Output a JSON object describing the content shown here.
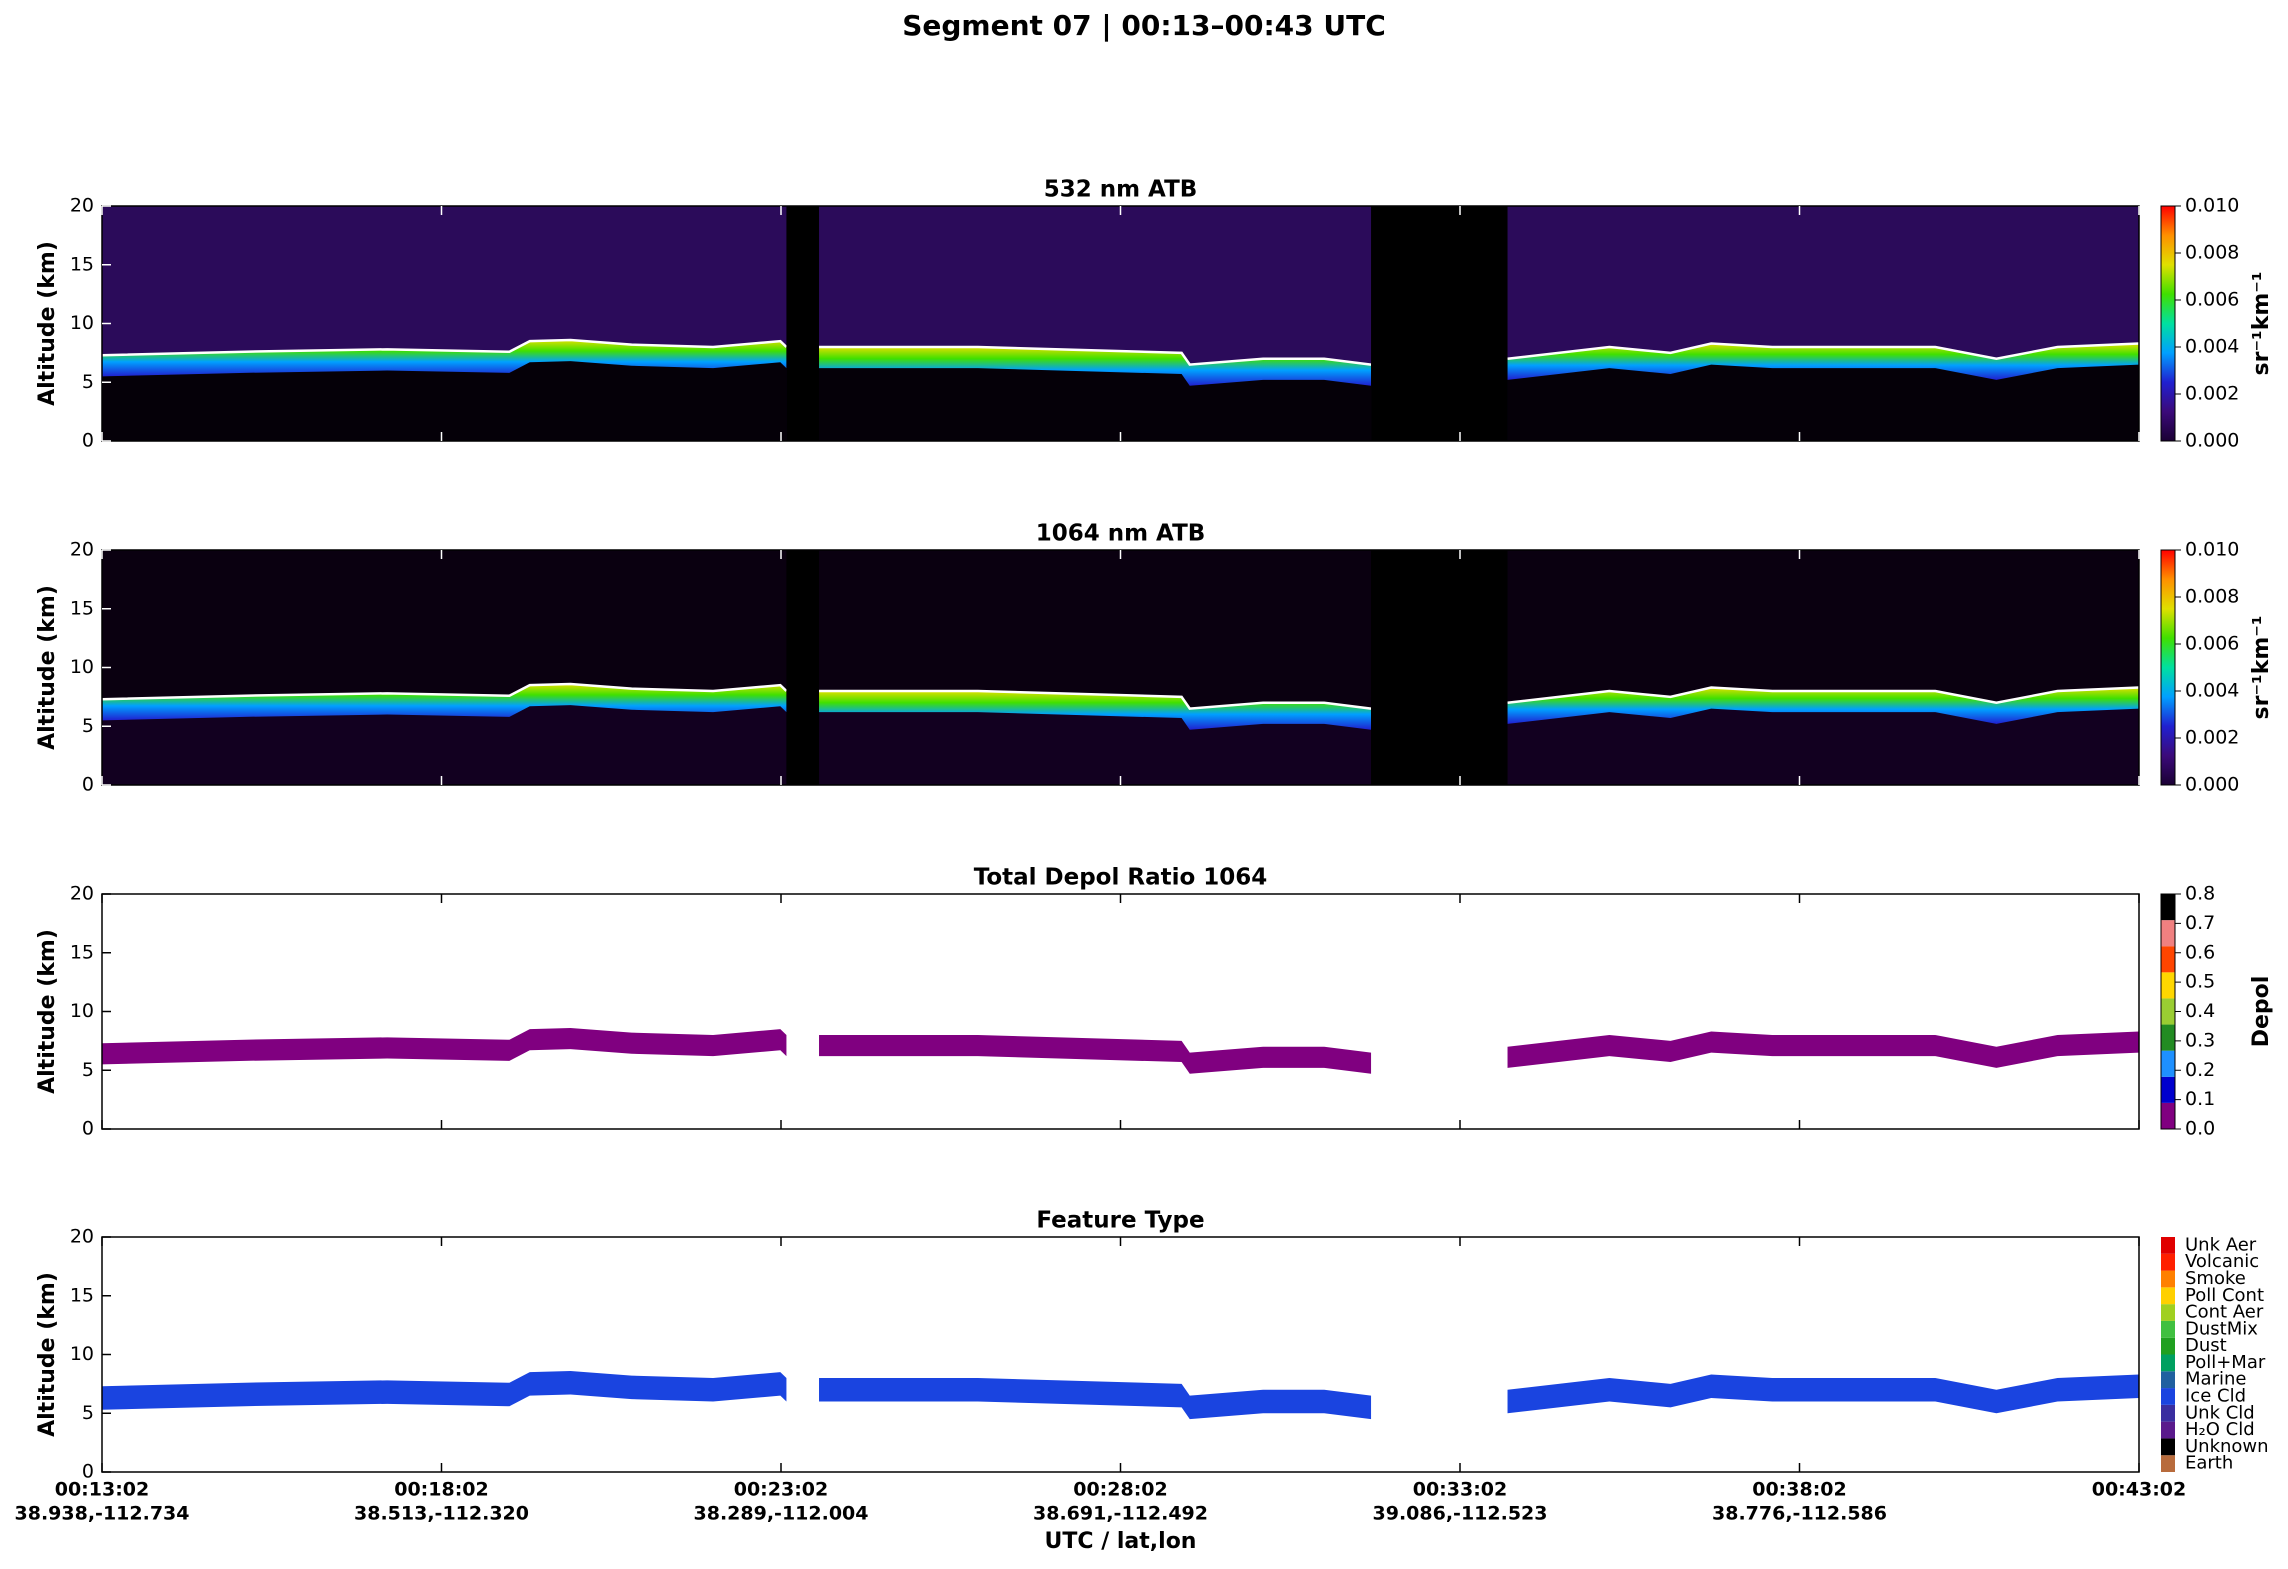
{
  "title": "Segment 07  |  00:13–00:43 UTC",
  "chart_data": [
    {
      "type": "heatmap",
      "title": "532 nm ATB",
      "ylabel": "Altitude (km)",
      "ylim": [
        0,
        20
      ],
      "yticks": [
        0,
        5,
        10,
        15,
        20
      ],
      "colorbar": {
        "label": "sr⁻¹km⁻¹",
        "lim": [
          0,
          0.01
        ],
        "ticks": [
          {
            "value": 0,
            "label": "0.000"
          },
          {
            "value": 0.002,
            "label": "0.002"
          },
          {
            "value": 0.004,
            "label": "0.004"
          },
          {
            "value": 0.006,
            "label": "0.006"
          },
          {
            "value": 0.008,
            "label": "0.008"
          },
          {
            "value": 0.01,
            "label": "0.010"
          }
        ],
        "colors": [
          "#1a0033",
          "#3b0a7a",
          "#2020d0",
          "#00a0ff",
          "#00e0a0",
          "#40e000",
          "#e0e000",
          "#ff9000",
          "#ff0000"
        ]
      }
    },
    {
      "type": "heatmap",
      "title": "1064 nm ATB",
      "ylabel": "Altitude (km)",
      "ylim": [
        0,
        20
      ],
      "yticks": [
        0,
        5,
        10,
        15,
        20
      ],
      "colorbar": {
        "label": "sr⁻¹km⁻¹",
        "lim": [
          0,
          0.01
        ],
        "ticks": [
          {
            "value": 0,
            "label": "0.000"
          },
          {
            "value": 0.002,
            "label": "0.002"
          },
          {
            "value": 0.004,
            "label": "0.004"
          },
          {
            "value": 0.006,
            "label": "0.006"
          },
          {
            "value": 0.008,
            "label": "0.008"
          },
          {
            "value": 0.01,
            "label": "0.010"
          }
        ],
        "colors": [
          "#1a0033",
          "#3b0a7a",
          "#2020d0",
          "#00a0ff",
          "#00e0a0",
          "#40e000",
          "#e0e000",
          "#ff9000",
          "#ff0000"
        ]
      }
    },
    {
      "type": "heatmap",
      "title": "Total Depol Ratio 1064",
      "ylabel": "Altitude (km)",
      "ylim": [
        0,
        20
      ],
      "yticks": [
        0,
        5,
        10,
        15,
        20
      ],
      "colorbar": {
        "label": "Depol",
        "lim": [
          0,
          0.8
        ],
        "ticks": [
          {
            "value": 0,
            "label": "0.0"
          },
          0.1,
          0.2,
          0.3,
          0.4,
          0.5,
          0.6,
          0.7,
          0.8
        ],
        "colors": [
          "#800080",
          "#0000cd",
          "#1e90ff",
          "#228b22",
          "#9acd32",
          "#ffd700",
          "#ff4500",
          "#f08080"
        ]
      }
    },
    {
      "type": "heatmap",
      "title": "Feature Type",
      "ylabel": "Altitude (km)",
      "xlabel": "UTC / lat,lon",
      "ylim": [
        0,
        20
      ],
      "yticks": [
        0,
        5,
        10,
        15,
        20
      ],
      "xticks": [
        {
          "time": "00:13:02",
          "position": "38.938,-112.734"
        },
        {
          "time": "00:18:02",
          "position": "38.513,-112.320"
        },
        {
          "time": "00:23:02",
          "position": "38.289,-112.004"
        },
        {
          "time": "00:28:02",
          "position": "38.691,-112.492"
        },
        {
          "time": "00:33:02",
          "position": "39.086,-112.523"
        },
        {
          "time": "00:38:02",
          "position": "38.776,-112.586"
        },
        {
          "time": "00:43:02"
        }
      ],
      "colorbar": {
        "categories": [
          "Earth",
          "Unknown",
          "H₂O Cld",
          "Unk Cld",
          "Ice Cld",
          "Marine",
          "Poll+Mar",
          "Dust",
          "DustMix",
          "Cont Aer",
          "Poll Cont",
          "Smoke",
          "Volcanic",
          "Unk Aer"
        ],
        "colors": [
          "#b86b3c",
          "#000000",
          "#5a1a8c",
          "#3a2ea0",
          "#1a44e0",
          "#2060a0",
          "#00a060",
          "#20a020",
          "#40c040",
          "#a0d020",
          "#ffd000",
          "#ff8000",
          "#ff2000",
          "#e00000"
        ]
      }
    }
  ]
}
